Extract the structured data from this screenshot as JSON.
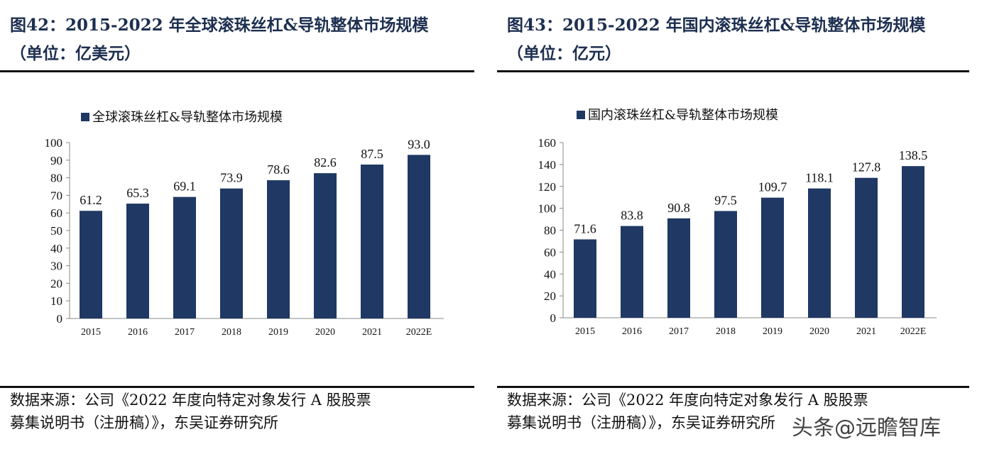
{
  "chart_data": [
    {
      "type": "bar",
      "title": "图42：2015-2022 年全球滚珠丝杠&导轨整体市场规模",
      "subtitle": "（单位：亿美元）",
      "legend": "全球滚珠丝杠&导轨整体市场规模",
      "legend_position": "top-left",
      "categories": [
        "2015",
        "2016",
        "2017",
        "2018",
        "2019",
        "2020",
        "2021",
        "2022E"
      ],
      "values": [
        61.2,
        65.3,
        69.1,
        73.9,
        78.6,
        82.6,
        87.5,
        93.0
      ],
      "value_labels": [
        "61.2",
        "65.3",
        "69.1",
        "73.9",
        "78.6",
        "82.6",
        "87.5",
        "93.0"
      ],
      "ylim": [
        0,
        100
      ],
      "yticks": [
        0,
        10,
        20,
        30,
        40,
        50,
        60,
        70,
        80,
        90,
        100
      ],
      "grid": false,
      "color": "#1f3864",
      "source": [
        "数据来源：公司《2022 年度向特定对象发行 A 股股票",
        "募集说明书（注册稿）》，东吴证券研究所"
      ]
    },
    {
      "type": "bar",
      "title": "图43：2015-2022 年国内滚珠丝杠&导轨整体市场规模",
      "subtitle": "（单位：亿元）",
      "legend": "国内滚珠丝杠&导轨整体市场规模",
      "legend_position": "top-left",
      "categories": [
        "2015",
        "2016",
        "2017",
        "2018",
        "2019",
        "2020",
        "2021",
        "2022E"
      ],
      "values": [
        71.6,
        83.8,
        90.8,
        97.5,
        109.7,
        118.1,
        127.8,
        138.5
      ],
      "value_labels": [
        "71.6",
        "83.8",
        "90.8",
        "97.5",
        "109.7",
        "118.1",
        "127.8",
        "138.5"
      ],
      "ylim": [
        0,
        160
      ],
      "yticks": [
        0,
        20,
        40,
        60,
        80,
        100,
        120,
        140,
        160
      ],
      "grid": false,
      "color": "#1f3864",
      "source": [
        "数据来源：公司《2022 年度向特定对象发行 A 股股票",
        "募集说明书（注册稿）》，东吴证券研究所"
      ]
    }
  ],
  "watermark": "头条@远瞻智库"
}
